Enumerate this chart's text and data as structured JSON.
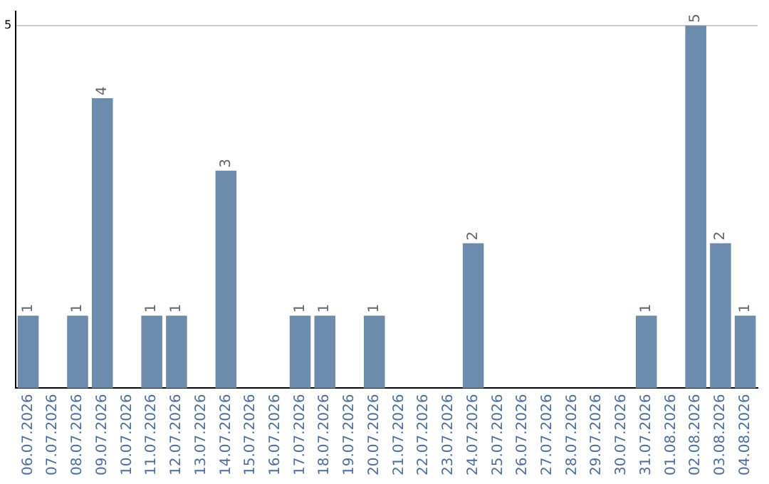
{
  "chart_data": {
    "type": "bar",
    "categories": [
      "06.07.2026",
      "07.07.2026",
      "08.07.2026",
      "09.07.2026",
      "10.07.2026",
      "11.07.2026",
      "12.07.2026",
      "13.07.2026",
      "14.07.2026",
      "15.07.2026",
      "16.07.2026",
      "17.07.2026",
      "18.07.2026",
      "19.07.2026",
      "20.07.2026",
      "21.07.2026",
      "22.07.2026",
      "23.07.2026",
      "24.07.2026",
      "25.07.2026",
      "26.07.2026",
      "27.07.2026",
      "28.07.2026",
      "29.07.2026",
      "30.07.2026",
      "31.07.2026",
      "01.08.2026",
      "02.08.2026",
      "03.08.2026",
      "04.08.2026"
    ],
    "values": [
      1,
      0,
      1,
      4,
      0,
      1,
      1,
      0,
      3,
      0,
      0,
      1,
      1,
      0,
      1,
      0,
      0,
      0,
      2,
      0,
      0,
      0,
      0,
      0,
      0,
      1,
      0,
      5,
      2,
      1
    ],
    "value_labels": [
      "1",
      null,
      "1",
      "4",
      null,
      "1",
      "1",
      null,
      "3",
      null,
      null,
      "1",
      "1",
      null,
      "1",
      null,
      null,
      null,
      "2",
      null,
      null,
      null,
      null,
      null,
      null,
      "1",
      null,
      "5",
      "2",
      "1"
    ],
    "color": "#6b8cad",
    "ylim": [
      0,
      5.2
    ],
    "yticks": [
      5
    ],
    "grid": "y",
    "legend": false
  }
}
